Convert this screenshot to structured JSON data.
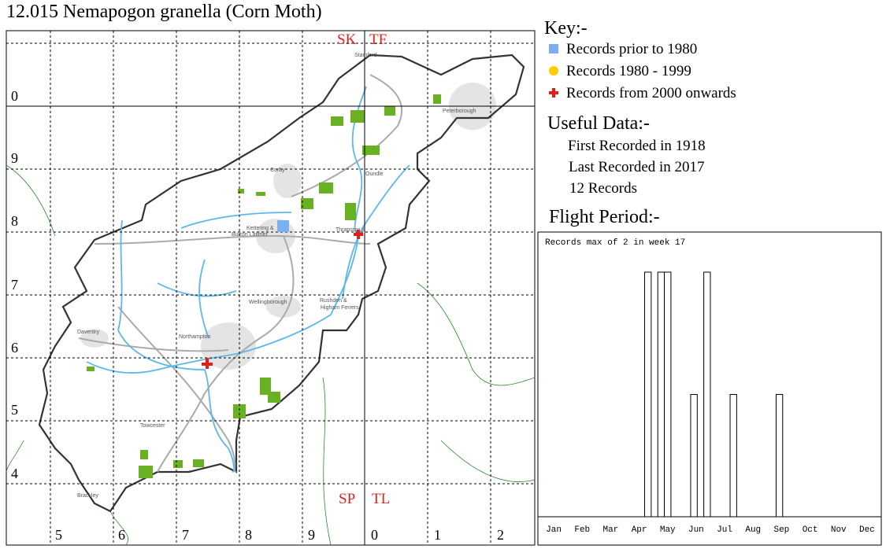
{
  "title": "12.015 Nemapogon granella (Corn Moth)",
  "map": {
    "square_labels": [
      "SK",
      "TF",
      "SP",
      "TL"
    ],
    "northing_labels": [
      "0",
      "9",
      "8",
      "7",
      "6",
      "5",
      "4"
    ],
    "easting_labels": [
      "5",
      "6",
      "7",
      "8",
      "9",
      "0",
      "1",
      "2"
    ],
    "towns": [
      "Stamford",
      "Peterborough",
      "Corby",
      "Oundle",
      "Kettering &",
      "Burton Latimer",
      "Thrapston &",
      "Wellingborough",
      "Rushden &",
      "Higham Ferrers",
      "Daventry",
      "Northampton",
      "Towcester",
      "Brackley"
    ]
  },
  "key": {
    "heading": "Key:-",
    "items": [
      "Records prior to 1980",
      "Records 1980 - 1999",
      "Records from 2000 onwards"
    ]
  },
  "useful_data": {
    "heading": "Useful Data:-",
    "items": [
      "First Recorded in 1918",
      "Last Recorded in 2017",
      "12 Records"
    ]
  },
  "flight_period": {
    "heading": "Flight Period:-"
  },
  "chart_data": {
    "type": "bar",
    "title": "Records max of 2 in week 17",
    "x": [
      17,
      19,
      20,
      24,
      26,
      30,
      37
    ],
    "values": [
      2,
      2,
      2,
      1,
      2,
      1,
      1
    ],
    "xlim": [
      1,
      53
    ],
    "ylim": [
      0,
      2
    ],
    "xticks": [
      {
        "value": 3.17,
        "label": "Jan"
      },
      {
        "value": 7.5,
        "label": "Feb"
      },
      {
        "value": 11.83,
        "label": "Mar"
      },
      {
        "value": 16.17,
        "label": "Apr"
      },
      {
        "value": 20.5,
        "label": "May"
      },
      {
        "value": 24.83,
        "label": "Jun"
      },
      {
        "value": 29.17,
        "label": "Jul"
      },
      {
        "value": 33.5,
        "label": "Aug"
      },
      {
        "value": 37.83,
        "label": "Sep"
      },
      {
        "value": 42.17,
        "label": "Oct"
      },
      {
        "value": 46.5,
        "label": "Nov"
      },
      {
        "value": 50.83,
        "label": "Dec"
      }
    ],
    "color": "#ffffff"
  }
}
